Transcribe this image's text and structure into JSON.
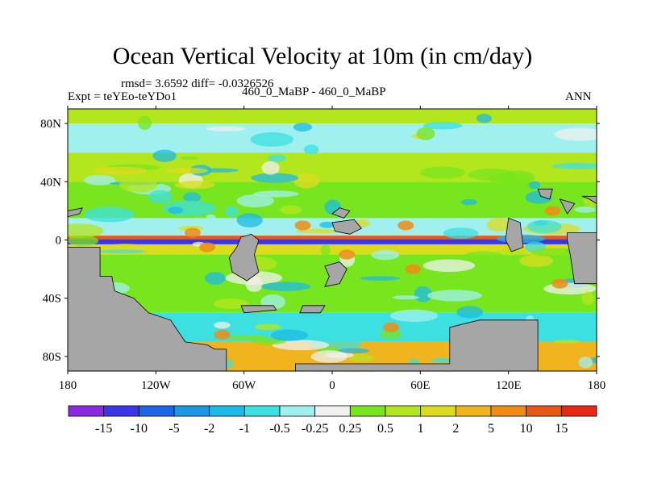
{
  "figure": {
    "title": "Ocean Vertical Velocity at 10m (in cm/day)",
    "stats": "rmsd= 3.6592  diff= -0.0326526",
    "expt_label": "Expt = teYEo-teYDo1",
    "case_label": "460_0_MaBP - 460_0_MaBP",
    "season": "ANN"
  },
  "chart_data": {
    "type": "heatmap",
    "title": "Ocean Vertical Velocity at 10m (in cm/day)",
    "subtitle": "460_0_MaBP - 460_0_MaBP",
    "xlabel": "",
    "ylabel": "",
    "xlim": [
      -180,
      180
    ],
    "ylim": [
      -90,
      90
    ],
    "x_ticks": [
      {
        "value": -180,
        "label": "180"
      },
      {
        "value": -120,
        "label": "120W"
      },
      {
        "value": -60,
        "label": "60W"
      },
      {
        "value": 0,
        "label": "0"
      },
      {
        "value": 60,
        "label": "60E"
      },
      {
        "value": 120,
        "label": "120E"
      },
      {
        "value": 180,
        "label": "180"
      }
    ],
    "y_ticks": [
      {
        "value": 80,
        "label": "80N"
      },
      {
        "value": 40,
        "label": "40N"
      },
      {
        "value": 0,
        "label": "0"
      },
      {
        "value": -40,
        "label": "40S"
      },
      {
        "value": -80,
        "label": "80S"
      }
    ],
    "land_color": "#a6a6a6",
    "colorbar": {
      "labels": [
        "-15",
        "-10",
        "-5",
        "-2",
        "-1",
        "-0.5",
        "-0.25",
        "0.25",
        "0.5",
        "1",
        "2",
        "5",
        "10",
        "15"
      ],
      "colors": [
        "#8a2be2",
        "#3c37e6",
        "#1e64e6",
        "#1e96e6",
        "#1ebae6",
        "#3ce0e0",
        "#a0f0f0",
        "#f0f0f0",
        "#78e61e",
        "#b4e61e",
        "#dcdc1e",
        "#f0b41e",
        "#f08c14",
        "#e65a14",
        "#e62814"
      ]
    },
    "zonal_bands": [
      {
        "lat_range": [
          80,
          90
        ],
        "value": 0.5
      },
      {
        "lat_range": [
          60,
          80
        ],
        "value": -0.5
      },
      {
        "lat_range": [
          40,
          60
        ],
        "value": 0.5
      },
      {
        "lat_range": [
          15,
          40
        ],
        "value": 0.25
      },
      {
        "lat_range": [
          3,
          15
        ],
        "value": -0.5
      },
      {
        "lat_range": [
          0.5,
          3
        ],
        "value": 10
      },
      {
        "lat_range": [
          -3,
          0.5
        ],
        "value": -15
      },
      {
        "lat_range": [
          -10,
          -3
        ],
        "value": 1
      },
      {
        "lat_range": [
          -50,
          -10
        ],
        "value": 0.25
      },
      {
        "lat_range": [
          -70,
          -50
        ],
        "value": -1
      },
      {
        "lat_range": [
          -90,
          -70
        ],
        "value": 2
      }
    ]
  }
}
